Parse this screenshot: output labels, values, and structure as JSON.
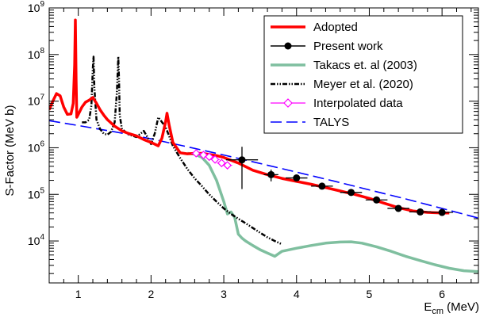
{
  "chart_data": {
    "type": "line",
    "ylabel": "S-Factor (MeV b)",
    "xlabel": "E",
    "xlabel_sub": "cm",
    "xlabel_unit": " (MeV)",
    "x_axis": {
      "min": 0.6,
      "max": 6.5,
      "log": false,
      "ticks": [
        1,
        2,
        3,
        4,
        5,
        6
      ],
      "tick_labels": [
        "1",
        "2",
        "3",
        "4",
        "5",
        "6"
      ]
    },
    "y_axis": {
      "log": true,
      "min_exp": 3.1,
      "max_exp": 9.0,
      "tick_exponents": [
        4,
        5,
        6,
        7,
        8,
        9
      ],
      "tick_base": "10"
    },
    "grid": false,
    "legend_position": "top-right",
    "series": [
      {
        "name": "Adopted",
        "color": "#ff0000",
        "style": "solid-thick",
        "x": [
          0.6,
          0.65,
          0.7,
          0.75,
          0.8,
          0.85,
          0.9,
          0.93,
          0.95,
          0.96,
          0.97,
          0.98,
          1.0,
          1.05,
          1.1,
          1.15,
          1.2,
          1.25,
          1.3,
          1.35,
          1.4,
          1.5,
          1.6,
          1.7,
          1.8,
          1.9,
          2.0,
          2.1,
          2.15,
          2.2,
          2.22,
          2.25,
          2.3,
          2.4,
          2.5,
          2.6,
          2.7,
          2.8,
          2.9,
          3.0,
          3.2,
          3.4,
          3.6,
          3.8,
          4.0,
          4.2,
          4.4,
          4.6,
          4.8,
          5.0,
          5.2,
          5.4,
          5.6,
          5.8,
          6.0,
          6.1
        ],
        "y": [
          6500000,
          10000000,
          14500000,
          13000000,
          7500000,
          5200000,
          5300000,
          9000000,
          60000000,
          550000000,
          30000000,
          4500000,
          5200000,
          7500000,
          9500000,
          10500000,
          12000000,
          9000000,
          6500000,
          5000000,
          4000000,
          2900000,
          2300000,
          2000000,
          1800000,
          1500000,
          1300000,
          1100000,
          1600000,
          3600000,
          5500000,
          3000000,
          1300000,
          780000,
          740000,
          760000,
          760000,
          720000,
          680000,
          620000,
          470000,
          330000,
          265000,
          220000,
          190000,
          165000,
          140000,
          118000,
          100000,
          82000,
          65000,
          52000,
          44000,
          41000,
          40000,
          40000
        ]
      },
      {
        "name": "Present work",
        "color": "#000000",
        "style": "points-errorbars",
        "points": [
          {
            "x": 3.25,
            "y": 550000,
            "ex": 0.22,
            "ylo": 130000,
            "yhi": 1050000
          },
          {
            "x": 3.65,
            "y": 265000,
            "ex": 0.1,
            "ylo": 190000,
            "yhi": 340000
          },
          {
            "x": 4.0,
            "y": 225000,
            "ex": 0.15,
            "ylo": 195000,
            "yhi": 255000
          },
          {
            "x": 4.35,
            "y": 150000,
            "ex": 0.15,
            "ylo": 128000,
            "yhi": 172000
          },
          {
            "x": 4.75,
            "y": 110000,
            "ex": 0.15,
            "ylo": 95000,
            "yhi": 125000
          },
          {
            "x": 5.1,
            "y": 76000,
            "ex": 0.15,
            "ylo": 66000,
            "yhi": 86000
          },
          {
            "x": 5.4,
            "y": 50000,
            "ex": 0.15,
            "ylo": 44000,
            "yhi": 56000
          },
          {
            "x": 5.7,
            "y": 42000,
            "ex": 0.15,
            "ylo": 38000,
            "yhi": 46000
          },
          {
            "x": 6.0,
            "y": 41000,
            "ex": 0.15,
            "ylo": 37000,
            "yhi": 45000
          }
        ]
      },
      {
        "name": "Takacs et. al (2003)",
        "color": "#7fbf9f",
        "style": "solid-thick",
        "x": [
          2.5,
          2.6,
          2.7,
          2.8,
          2.9,
          3.0,
          3.05,
          3.1,
          3.15,
          3.2,
          3.25,
          3.3,
          3.4,
          3.5,
          3.6,
          3.7,
          3.8,
          4.0,
          4.2,
          4.4,
          4.6,
          4.75,
          4.9,
          5.1,
          5.3,
          5.5,
          5.7,
          5.9,
          6.1,
          6.3,
          6.5
        ],
        "y": [
          760000,
          730000,
          620000,
          420000,
          200000,
          70000,
          38000,
          42000,
          32000,
          14000,
          11500,
          10000,
          8000,
          6500,
          5500,
          4700,
          6000,
          7000,
          8000,
          9000,
          9500,
          9600,
          9000,
          7500,
          6000,
          4700,
          3800,
          3100,
          2600,
          2300,
          2200
        ]
      },
      {
        "name": "Meyer et al. (2020)",
        "color": "#000000",
        "style": "dash-dot",
        "x": [
          1.05,
          1.1,
          1.15,
          1.18,
          1.2,
          1.21,
          1.22,
          1.25,
          1.3,
          1.35,
          1.4,
          1.45,
          1.5,
          1.53,
          1.55,
          1.56,
          1.57,
          1.6,
          1.7,
          1.8,
          1.9,
          1.95,
          2.0,
          2.05,
          2.1,
          2.2,
          2.3,
          2.4,
          2.5,
          2.6,
          2.7,
          2.8,
          2.9,
          3.0,
          3.1,
          3.2,
          3.3,
          3.4,
          3.5,
          3.6,
          3.7,
          3.8
        ],
        "y": [
          3500000,
          3500000,
          4000000,
          8000000,
          50000000,
          90000000,
          20000000,
          4000000,
          2500000,
          2000000,
          1900000,
          2200000,
          3500000,
          15000000,
          90000000,
          30000000,
          5000000,
          2500000,
          1900000,
          1700000,
          2300000,
          1700000,
          1200000,
          2000000,
          4500000,
          2800000,
          1100000,
          600000,
          350000,
          220000,
          150000,
          100000,
          70000,
          50000,
          38000,
          30000,
          24000,
          19000,
          15000,
          12000,
          10000,
          8500
        ]
      },
      {
        "name": "Interpolated data",
        "color": "#ff00ff",
        "style": "open-diamond",
        "points": [
          {
            "x": 2.62,
            "y": 760000
          },
          {
            "x": 2.72,
            "y": 700000
          },
          {
            "x": 2.8,
            "y": 640000
          },
          {
            "x": 2.88,
            "y": 560000
          },
          {
            "x": 2.97,
            "y": 470000
          },
          {
            "x": 3.05,
            "y": 420000
          }
        ]
      },
      {
        "name": "TALYS",
        "color": "#0000ff",
        "style": "long-dash",
        "x": [
          0.6,
          1.0,
          1.5,
          2.0,
          2.5,
          3.0,
          3.5,
          4.0,
          4.5,
          5.0,
          5.5,
          6.0,
          6.5
        ],
        "y": [
          3800000,
          3000000,
          2200000,
          1550000,
          1050000,
          700000,
          460000,
          300000,
          195000,
          125000,
          80000,
          50000,
          31000
        ]
      }
    ]
  }
}
